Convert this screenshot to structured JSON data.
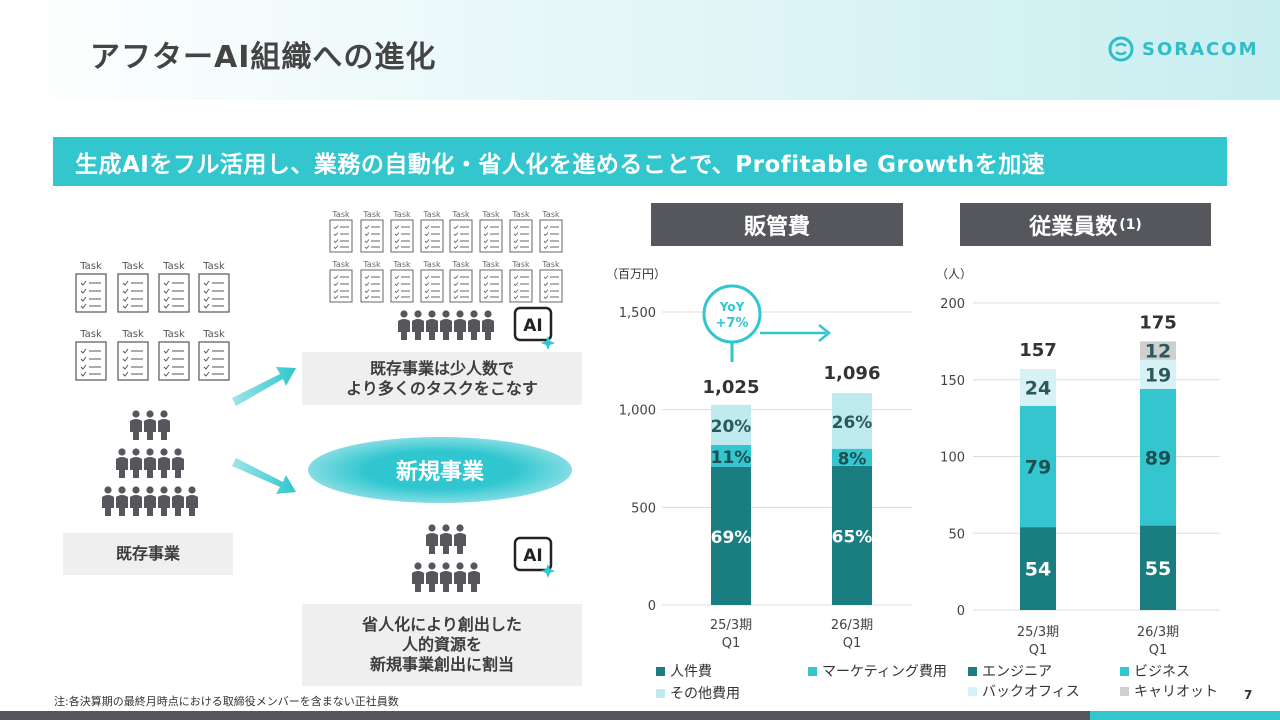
{
  "header": {
    "title": "アフターAI組織への進化",
    "logo_text": "SORACOM"
  },
  "banner": {
    "text": "生成AIをフル活用し、業務の自動化・省人化を進めることで、Profitable Growthを加速"
  },
  "left": {
    "task_label": "Task",
    "existing_label": "既存事業",
    "new_business_label": "新規事業",
    "box_top_line1": "既存事業は少人数で",
    "box_top_line2": "より多くのタスクをこなす",
    "box_bottom_line1": "省人化により創出した",
    "box_bottom_line2": "人的資源を",
    "box_bottom_line3": "新規事業創出に割当",
    "ai_label": "AI"
  },
  "sga": {
    "heading": "販管費",
    "unit": "（百万円）",
    "yoy_line1": "YoY",
    "yoy_line2": "+7%",
    "chart_data": {
      "type": "bar",
      "stacked": true,
      "categories": [
        "25/3期 Q1",
        "26/3期 Q1"
      ],
      "category_line1": [
        "25/3期",
        "26/3期"
      ],
      "category_line2": [
        "Q1",
        "Q1"
      ],
      "totals": [
        1025,
        1096
      ],
      "total_labels": [
        "1,025",
        "1,096"
      ],
      "series": [
        {
          "name": "人件費",
          "share": [
            69,
            65
          ],
          "labels": [
            "69%",
            "65%"
          ],
          "color": "#1a7d80"
        },
        {
          "name": "マーケティング費用",
          "share": [
            11,
            8
          ],
          "labels": [
            "11%",
            "8%"
          ],
          "color": "#33c6cf"
        },
        {
          "name": "その他費用",
          "share": [
            20,
            26
          ],
          "labels": [
            "20%",
            "26%"
          ],
          "color": "#bfeaee"
        }
      ],
      "ylim": [
        0,
        1500
      ],
      "yticks": [
        0,
        500,
        1000,
        1500
      ],
      "ytick_labels": [
        "0",
        "500",
        "1,000",
        "1,500"
      ]
    }
  },
  "emp": {
    "heading": "従業員数",
    "heading_sup": "(1)",
    "unit": "（人）",
    "chart_data": {
      "type": "bar",
      "stacked": true,
      "categories": [
        "25/3期 Q1",
        "26/3期 Q1"
      ],
      "category_line1": [
        "25/3期",
        "26/3期"
      ],
      "category_line2": [
        "Q1",
        "Q1"
      ],
      "totals": [
        157,
        175
      ],
      "total_labels": [
        "157",
        "175"
      ],
      "series": [
        {
          "name": "エンジニア",
          "values": [
            54,
            55
          ],
          "labels": [
            "54",
            "55"
          ],
          "color": "#1a7d80"
        },
        {
          "name": "ビジネス",
          "values": [
            79,
            89
          ],
          "labels": [
            "79",
            "89"
          ],
          "color": "#33c6cf"
        },
        {
          "name": "バックオフィス",
          "values": [
            24,
            19
          ],
          "labels": [
            "24",
            "19"
          ],
          "color": "#d7f2f4"
        },
        {
          "name": "キャリオット",
          "values": [
            0,
            12
          ],
          "labels": [
            "",
            "12"
          ],
          "color": "#cfcfcf"
        }
      ],
      "ylim": [
        0,
        200
      ],
      "yticks": [
        0,
        50,
        100,
        150,
        200
      ],
      "ytick_labels": [
        "0",
        "50",
        "100",
        "150",
        "200"
      ]
    }
  },
  "footnote": "注:各決算期の最終月時点における取締役メンバーを含まない正社員数",
  "page_number": "7"
}
